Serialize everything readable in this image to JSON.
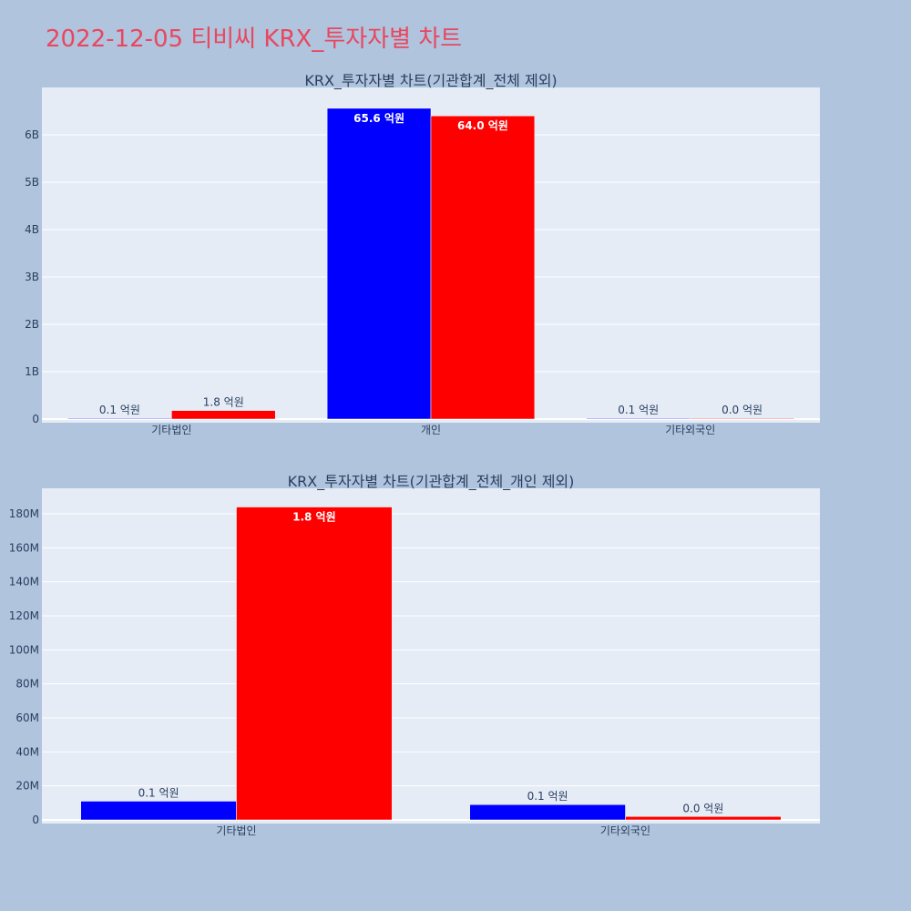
{
  "page": {
    "title": "2022-12-05 티비씨 KRX_투자자별 차트"
  },
  "chart_data": [
    {
      "type": "bar",
      "title": "KRX_투자자별 차트(기관합계_전체 제외)",
      "categories": [
        "기타법인",
        "개인",
        "기타외국인"
      ],
      "series": [
        {
          "color": "#0000ff",
          "values": [
            10000000,
            6560000000,
            10000000
          ],
          "labels": [
            "0.1 억원",
            "65.6 억원",
            "0.1 억원"
          ]
        },
        {
          "color": "#ff0000",
          "values": [
            180000000,
            6400000000,
            2000000
          ],
          "labels": [
            "1.8 억원",
            "64.0 억원",
            "0.0 억원"
          ]
        }
      ],
      "yticks": [
        "0",
        "1B",
        "2B",
        "3B",
        "4B",
        "5B",
        "6B"
      ],
      "ylim": [
        0,
        7000000000
      ],
      "grid": true,
      "legend": false
    },
    {
      "type": "bar",
      "title": "KRX_투자자별 차트(기관합계_전체_개인 제외)",
      "categories": [
        "기타법인",
        "기타외국인"
      ],
      "series": [
        {
          "color": "#0000ff",
          "values": [
            11000000,
            9000000
          ],
          "labels": [
            "0.1 억원",
            "0.1 억원"
          ]
        },
        {
          "color": "#ff0000",
          "values": [
            184000000,
            2000000
          ],
          "labels": [
            "1.8 억원",
            "0.0 억원"
          ]
        }
      ],
      "yticks": [
        "0",
        "20M",
        "40M",
        "60M",
        "80M",
        "100M",
        "120M",
        "140M",
        "160M",
        "180M"
      ],
      "ylim": [
        0,
        195000000
      ],
      "grid": true,
      "legend": false
    }
  ]
}
